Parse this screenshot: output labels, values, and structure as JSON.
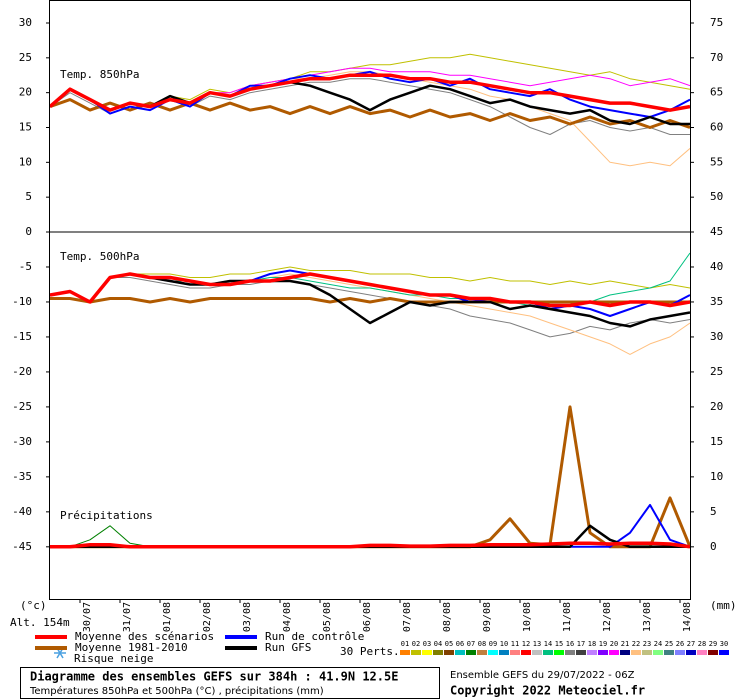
{
  "chart_data": [
    {
      "type": "line",
      "label": "Temp. 850hPa",
      "x": [
        0,
        12,
        24,
        36,
        48,
        60,
        72,
        84,
        96,
        108,
        120,
        132,
        144,
        156,
        168,
        180,
        192,
        204,
        216,
        228,
        240,
        252,
        264,
        276,
        288,
        300,
        312,
        324,
        336,
        348,
        360,
        372,
        384
      ],
      "xlim": [
        0,
        384
      ],
      "ylim": [
        0,
        33.3
      ],
      "y2lim": [
        45,
        78.3
      ],
      "yticks": [
        0,
        5,
        10,
        15,
        20,
        25,
        30
      ],
      "y2ticks": [
        45,
        50,
        55,
        60,
        65,
        70,
        75
      ],
      "series": [
        {
          "color": "#c0c000",
          "values": [
            18,
            20.5,
            19,
            17.5,
            18.5,
            18,
            19.5,
            19,
            20.5,
            20,
            21,
            21.5,
            22,
            23,
            23,
            23.5,
            24,
            24,
            24.5,
            25,
            25,
            25.5,
            25,
            24.5,
            24,
            23.5,
            23,
            22.5,
            23,
            22,
            21.5,
            21,
            20.5
          ]
        },
        {
          "color": "#808080",
          "values": [
            18,
            20,
            18.5,
            17,
            18,
            17.5,
            19,
            18,
            19.5,
            19,
            20,
            20.5,
            21,
            21.5,
            21.5,
            22,
            22,
            21.5,
            21,
            20.5,
            20,
            19,
            18,
            16.5,
            15,
            14,
            15.5,
            16,
            15,
            14.5,
            15,
            14,
            14
          ]
        },
        {
          "color": "#ffc080",
          "values": [
            18,
            20.5,
            19,
            17.5,
            18.5,
            18,
            19.5,
            18.5,
            20,
            20,
            21,
            21.5,
            22,
            22,
            22.5,
            23,
            23,
            22.5,
            22,
            21.5,
            21,
            20.5,
            19.5,
            19,
            18,
            17,
            16,
            13,
            10,
            9.5,
            10,
            9.5,
            12
          ]
        },
        {
          "color": "#ff00ff",
          "values": [
            18,
            20.5,
            19,
            17.5,
            18.5,
            18,
            19.5,
            18.5,
            20,
            20,
            21,
            21.5,
            22,
            22.5,
            23,
            23.5,
            23.5,
            23,
            23,
            23,
            22.5,
            22.5,
            22,
            21.5,
            21,
            21.5,
            22,
            22.5,
            22,
            21,
            21.5,
            22,
            21
          ]
        },
        {
          "color": "#b05a00",
          "values": [
            18,
            19,
            17.5,
            18.5,
            17.5,
            18.5,
            17.5,
            18.5,
            17.5,
            18.5,
            17.5,
            18,
            17,
            18,
            17,
            18,
            17,
            17.5,
            16.5,
            17.5,
            16.5,
            17,
            16,
            17,
            16,
            16.5,
            15.5,
            16.5,
            15.5,
            16,
            15,
            16,
            15
          ]
        },
        {
          "color": "#0000ff",
          "values": [
            18,
            20.5,
            19,
            17,
            18,
            17.5,
            19,
            18,
            20,
            19.5,
            21,
            21,
            22,
            22.5,
            22,
            22.5,
            23,
            22,
            21.5,
            22,
            21,
            22,
            20.5,
            20,
            19.5,
            20.5,
            19,
            18,
            17.5,
            17,
            16.5,
            17.5,
            19
          ]
        },
        {
          "color": "#000000",
          "values": [
            18,
            20.5,
            19,
            17.5,
            18.5,
            18,
            19.5,
            18.5,
            20,
            19.5,
            20.5,
            21,
            21.5,
            21,
            20,
            19,
            17.5,
            19,
            20,
            21,
            20.5,
            19.5,
            18.5,
            19,
            18,
            17.5,
            17,
            17.5,
            16,
            15.5,
            16.5,
            15.5,
            15.5
          ]
        },
        {
          "color": "#ff0000",
          "values": [
            18,
            20.5,
            19,
            17.5,
            18.5,
            18,
            19,
            18.5,
            20,
            19.5,
            20.5,
            21,
            21.5,
            22,
            22,
            22.5,
            22.5,
            22.5,
            22,
            22,
            21.5,
            21.5,
            21,
            20.5,
            20,
            20,
            19.5,
            19,
            18.5,
            18.5,
            18,
            17.5,
            18
          ]
        }
      ]
    },
    {
      "type": "line",
      "label": "Temp. 500hPa",
      "label2": "Précipitations",
      "x": [
        0,
        12,
        24,
        36,
        48,
        60,
        72,
        84,
        96,
        108,
        120,
        132,
        144,
        156,
        168,
        180,
        192,
        204,
        216,
        228,
        240,
        252,
        264,
        276,
        288,
        300,
        312,
        324,
        336,
        348,
        360,
        372,
        384
      ],
      "xlim": [
        0,
        384
      ],
      "ylim": [
        -52.6,
        0
      ],
      "y2lim": [
        -7.6,
        45
      ],
      "yticks": [
        -5,
        -10,
        -15,
        -20,
        -25,
        -30,
        -35,
        -40,
        -45
      ],
      "y2ticks": [
        0,
        5,
        10,
        15,
        20,
        25,
        30,
        35,
        40
      ],
      "xticks": [
        {
          "value": 18,
          "label": "30/07"
        },
        {
          "value": 42,
          "label": "31/07"
        },
        {
          "value": 66,
          "label": "01/08"
        },
        {
          "value": 90,
          "label": "02/08"
        },
        {
          "value": 114,
          "label": "03/08"
        },
        {
          "value": 138,
          "label": "04/08"
        },
        {
          "value": 162,
          "label": "05/08"
        },
        {
          "value": 186,
          "label": "06/08"
        },
        {
          "value": 210,
          "label": "07/08"
        },
        {
          "value": 234,
          "label": "08/08"
        },
        {
          "value": 258,
          "label": "09/08"
        },
        {
          "value": 282,
          "label": "10/08"
        },
        {
          "value": 306,
          "label": "11/08"
        },
        {
          "value": 330,
          "label": "12/08"
        },
        {
          "value": 354,
          "label": "13/08"
        },
        {
          "value": 378,
          "label": "14/08"
        }
      ],
      "ylabel": "(°c)",
      "y2label": "(mm)",
      "series": [
        {
          "color": "#c0c000",
          "values": [
            -9,
            -8.5,
            -10,
            -6.5,
            -6,
            -6,
            -6,
            -6.5,
            -6.5,
            -6,
            -6,
            -5.5,
            -5,
            -5.5,
            -5.5,
            -5.5,
            -6,
            -6,
            -6,
            -6.5,
            -6.5,
            -7,
            -6.5,
            -7,
            -7,
            -7.5,
            -7,
            -7.5,
            -7,
            -7.5,
            -8,
            -7.5,
            -8
          ]
        },
        {
          "color": "#808080",
          "values": [
            -9,
            -8.5,
            -10,
            -6.5,
            -6.5,
            -7,
            -7.5,
            -8,
            -8,
            -7.5,
            -7.5,
            -7,
            -7,
            -7.5,
            -8,
            -8.5,
            -9,
            -9.5,
            -10,
            -10.5,
            -11,
            -12,
            -12.5,
            -13,
            -14,
            -15,
            -14.5,
            -13.5,
            -14,
            -13,
            -12.5,
            -13,
            -12.5
          ]
        },
        {
          "color": "#ffc080",
          "values": [
            -9,
            -8.5,
            -10,
            -6.5,
            -6,
            -6.5,
            -7,
            -7,
            -7.5,
            -7,
            -7,
            -6.5,
            -6,
            -6.5,
            -7,
            -7.5,
            -8,
            -8.5,
            -9,
            -9.5,
            -10,
            -10.5,
            -11,
            -11.5,
            -12,
            -13,
            -14,
            -15,
            -16,
            -17.5,
            -16,
            -15,
            -13
          ]
        },
        {
          "color": "#00c080",
          "values": [
            -9,
            -8.5,
            -10,
            -6.5,
            -6,
            -6.5,
            -7,
            -7,
            -7.5,
            -7,
            -7,
            -6.5,
            -6.5,
            -7,
            -7.5,
            -8,
            -8,
            -8.5,
            -9,
            -9,
            -9.5,
            -9.5,
            -10,
            -10,
            -10.5,
            -11,
            -10.5,
            -10,
            -9,
            -8.5,
            -8,
            -7,
            -3
          ]
        },
        {
          "color": "#b05a00",
          "values": [
            -9.5,
            -9.5,
            -10,
            -9.5,
            -9.5,
            -10,
            -9.5,
            -10,
            -9.5,
            -9.5,
            -9.5,
            -9.5,
            -9.5,
            -9.5,
            -10,
            -9.5,
            -10,
            -9.5,
            -10,
            -10,
            -10,
            -10,
            -10,
            -10,
            -10,
            -10,
            -10,
            -10,
            -10,
            -10,
            -10,
            -10,
            -10
          ]
        },
        {
          "color": "#0000ff",
          "values": [
            -9,
            -8.5,
            -10,
            -6.5,
            -6,
            -6.5,
            -7,
            -7.5,
            -7.5,
            -7,
            -7,
            -6,
            -5.5,
            -6,
            -6.5,
            -7,
            -7.5,
            -8,
            -8.5,
            -9,
            -9,
            -10,
            -9.5,
            -10,
            -10,
            -11,
            -10.5,
            -11,
            -12,
            -11,
            -10,
            -10.5,
            -9
          ]
        },
        {
          "color": "#000000",
          "values": [
            -9,
            -8.5,
            -10,
            -6.5,
            -6,
            -6.5,
            -7,
            -7.5,
            -7.5,
            -7,
            -7,
            -7,
            -7,
            -7.5,
            -9,
            -11,
            -13,
            -11.5,
            -10,
            -10.5,
            -10,
            -10,
            -10,
            -11,
            -10.5,
            -11,
            -11.5,
            -12,
            -13,
            -13.5,
            -12.5,
            -12,
            -11.5
          ]
        },
        {
          "color": "#ff0000",
          "values": [
            -9,
            -8.5,
            -10,
            -6.5,
            -6,
            -6.5,
            -6.5,
            -7,
            -7.5,
            -7.5,
            -7,
            -7,
            -6.5,
            -6,
            -6.5,
            -7,
            -7.5,
            -8,
            -8.5,
            -9,
            -9,
            -9.5,
            -9.5,
            -10,
            -10,
            -10.5,
            -10.5,
            -10,
            -10.5,
            -10,
            -10,
            -10.5,
            -10
          ]
        },
        {
          "color": "#008000",
          "axis": "y2",
          "values": [
            0,
            0,
            1,
            3,
            0.5,
            0,
            0,
            0,
            0,
            0,
            0,
            0,
            0,
            0,
            0,
            0,
            0,
            0,
            0,
            0,
            0,
            0,
            0,
            0,
            0,
            0,
            0,
            0,
            0,
            0,
            0,
            0,
            0
          ]
        },
        {
          "color": "#b05a00",
          "axis": "y2",
          "values": [
            0,
            0,
            0,
            0,
            0,
            0,
            0,
            0,
            0,
            0,
            0,
            0,
            0,
            0,
            0,
            0,
            0,
            0,
            0,
            0,
            0,
            0,
            1,
            4,
            0.5,
            0.3,
            20,
            2,
            0,
            0,
            0,
            7,
            0
          ]
        },
        {
          "color": "#0000ff",
          "axis": "y2",
          "values": [
            0,
            0,
            0,
            0,
            0,
            0,
            0,
            0,
            0,
            0,
            0,
            0,
            0,
            0,
            0,
            0,
            0,
            0,
            0,
            0,
            0,
            0,
            0,
            0,
            0,
            0,
            0,
            0,
            0,
            2,
            6,
            1,
            0
          ]
        },
        {
          "color": "#000000",
          "axis": "y2",
          "values": [
            0,
            0,
            0,
            0,
            0,
            0,
            0,
            0,
            0,
            0,
            0,
            0,
            0,
            0,
            0,
            0,
            0,
            0,
            0,
            0,
            0,
            0,
            0,
            0,
            0,
            0,
            0,
            3,
            1,
            0,
            0,
            0,
            0
          ]
        },
        {
          "color": "#ff0000",
          "axis": "y2",
          "values": [
            0,
            0,
            0.3,
            0.3,
            0,
            0,
            0,
            0,
            0,
            0,
            0,
            0,
            0,
            0,
            0,
            0,
            0.2,
            0.2,
            0.1,
            0.1,
            0.2,
            0.2,
            0.3,
            0.3,
            0.3,
            0.4,
            0.5,
            0.5,
            0.4,
            0.5,
            0.5,
            0.4,
            0
          ]
        }
      ]
    }
  ],
  "alt": "Alt. 154m",
  "legend": {
    "items": [
      {
        "label": "Moyenne des scénarios",
        "color": "#ff0000"
      },
      {
        "label": "Moyenne 1981-2010",
        "color": "#b05a00"
      },
      {
        "label": "Run de contrôle",
        "color": "#0000ff"
      },
      {
        "label": "Run GFS",
        "color": "#000000"
      }
    ],
    "snow": "Risque neige",
    "perts_label": "30 Perts.",
    "perts": [
      {
        "code": "01",
        "color": "#ff8000"
      },
      {
        "code": "02",
        "color": "#c0c000"
      },
      {
        "code": "03",
        "color": "#ffff00"
      },
      {
        "code": "04",
        "color": "#808000"
      },
      {
        "code": "05",
        "color": "#804000"
      },
      {
        "code": "06",
        "color": "#00c0c0"
      },
      {
        "code": "07",
        "color": "#008000"
      },
      {
        "code": "08",
        "color": "#c08040"
      },
      {
        "code": "09",
        "color": "#00ffff"
      },
      {
        "code": "10",
        "color": "#0080c0"
      },
      {
        "code": "11",
        "color": "#ff8080"
      },
      {
        "code": "12",
        "color": "#ff0000"
      },
      {
        "code": "13",
        "color": "#c0c0c0"
      },
      {
        "code": "14",
        "color": "#00c080"
      },
      {
        "code": "15",
        "color": "#00ff00"
      },
      {
        "code": "16",
        "color": "#808080"
      },
      {
        "code": "17",
        "color": "#404040"
      },
      {
        "code": "18",
        "color": "#c080ff"
      },
      {
        "code": "19",
        "color": "#8000ff"
      },
      {
        "code": "20",
        "color": "#ff00ff"
      },
      {
        "code": "21",
        "color": "#000080"
      },
      {
        "code": "22",
        "color": "#ffc080"
      },
      {
        "code": "23",
        "color": "#c0c080"
      },
      {
        "code": "24",
        "color": "#80ff80"
      },
      {
        "code": "25",
        "color": "#408080"
      },
      {
        "code": "26",
        "color": "#8080ff"
      },
      {
        "code": "27",
        "color": "#0000c0"
      },
      {
        "code": "28",
        "color": "#ff80c0"
      },
      {
        "code": "29",
        "color": "#800000"
      },
      {
        "code": "30",
        "color": "#0000ff"
      }
    ]
  },
  "footer": {
    "title": "Diagramme des ensembles GEFS sur 384h : 41.9N 12.5E",
    "subtitle": "Températures 850hPa et 500hPa (°C) , précipitations (mm)",
    "run": "Ensemble GEFS du 29/07/2022 - 06Z",
    "copyright": "Copyright 2022 Meteociel.fr"
  }
}
